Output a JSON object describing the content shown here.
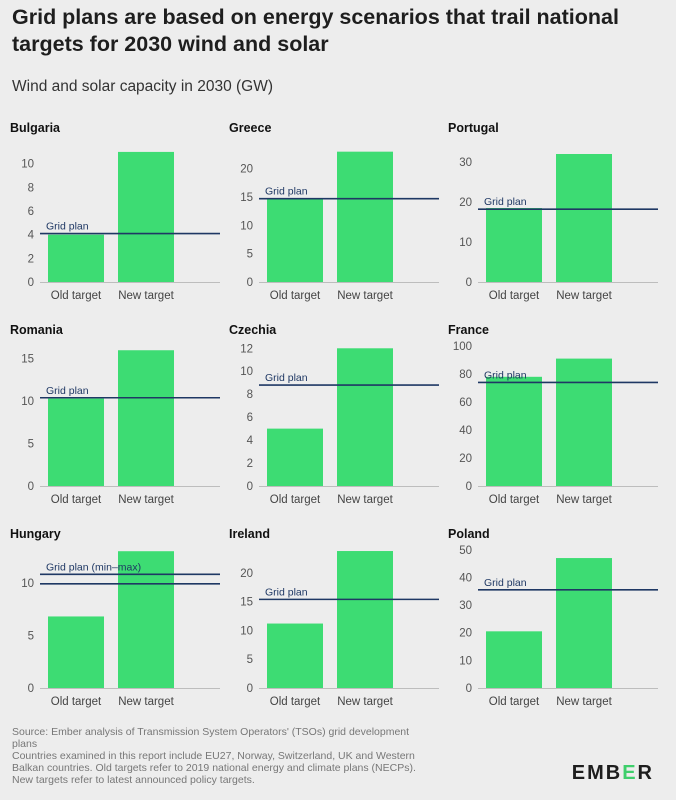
{
  "header": {
    "title": "Grid plans are based on energy scenarios that trail national targets for 2030 wind and solar",
    "subtitle": "Wind and solar capacity in 2030 (GW)"
  },
  "colors": {
    "bar": "#3ddc73",
    "gridline": "#1f3864",
    "axis": "#bdbdbd"
  },
  "chart_data": [
    {
      "type": "bar",
      "title": "Bulgaria",
      "categories": [
        "Old target",
        "New target"
      ],
      "values": [
        4,
        11
      ],
      "ylim": [
        0,
        11.5
      ],
      "yticks": [
        0,
        2,
        4,
        6,
        8,
        10
      ],
      "grid_plan": [
        4.1
      ],
      "grid_label": "Grid plan"
    },
    {
      "type": "bar",
      "title": "Greece",
      "categories": [
        "Old target",
        "New target"
      ],
      "values": [
        14.7,
        23
      ],
      "ylim": [
        0,
        24
      ],
      "yticks": [
        0,
        5,
        10,
        15,
        20
      ],
      "grid_plan": [
        14.7
      ],
      "grid_label": "Grid plan"
    },
    {
      "type": "bar",
      "title": "Portugal",
      "categories": [
        "Old target",
        "New target"
      ],
      "values": [
        18.5,
        32
      ],
      "ylim": [
        0,
        34
      ],
      "yticks": [
        0,
        10,
        20,
        30
      ],
      "grid_plan": [
        18.2
      ],
      "grid_label": "Grid plan"
    },
    {
      "type": "bar",
      "title": "Romania",
      "categories": [
        "Old target",
        "New target"
      ],
      "values": [
        10.3,
        16
      ],
      "ylim": [
        0,
        16.5
      ],
      "yticks": [
        0,
        5,
        10,
        15
      ],
      "grid_plan": [
        10.4
      ],
      "grid_label": "Grid plan"
    },
    {
      "type": "bar",
      "title": "Czechia",
      "categories": [
        "Old target",
        "New target"
      ],
      "values": [
        5,
        12
      ],
      "ylim": [
        0,
        12.2
      ],
      "yticks": [
        0,
        2,
        4,
        6,
        8,
        10,
        12
      ],
      "grid_plan": [
        8.8
      ],
      "grid_label": "Grid plan"
    },
    {
      "type": "bar",
      "title": "France",
      "categories": [
        "Old target",
        "New target"
      ],
      "values": [
        78,
        91
      ],
      "ylim": [
        0,
        100
      ],
      "yticks": [
        0,
        20,
        40,
        60,
        80,
        100
      ],
      "grid_plan": [
        74
      ],
      "grid_label": "Grid plan"
    },
    {
      "type": "bar",
      "title": "Hungary",
      "categories": [
        "Old target",
        "New target"
      ],
      "values": [
        6.8,
        13
      ],
      "ylim": [
        0,
        13.4
      ],
      "yticks": [
        0,
        5,
        10
      ],
      "grid_plan": [
        9.9,
        10.8
      ],
      "grid_label": "Grid plan (min–max)"
    },
    {
      "type": "bar",
      "title": "Ireland",
      "categories": [
        "Old target",
        "New target"
      ],
      "values": [
        11.2,
        23.8
      ],
      "ylim": [
        0,
        24.5
      ],
      "yticks": [
        0,
        5,
        10,
        15,
        20
      ],
      "grid_plan": [
        15.4
      ],
      "grid_label": "Grid plan"
    },
    {
      "type": "bar",
      "title": "Poland",
      "categories": [
        "Old target",
        "New target"
      ],
      "values": [
        20.5,
        47
      ],
      "ylim": [
        0,
        51
      ],
      "yticks": [
        0,
        10,
        20,
        30,
        40,
        50
      ],
      "grid_plan": [
        35.5
      ],
      "grid_label": "Grid plan"
    }
  ],
  "footer": {
    "source_line_1": "Source: Ember analysis of Transmission System Operators' (TSOs) grid development",
    "source_line_2": "plans",
    "note_line_1": "Countries examined in this report include EU27, Norway, Switzerland, UK and Western",
    "note_line_2": "Balkan countries. Old targets refer to 2019 national energy and climate plans (NECPs).",
    "note_line_3": "New targets refer to latest announced policy targets."
  },
  "logo": {
    "part1": "EMB",
    "part2": "E",
    "part3": "R"
  }
}
